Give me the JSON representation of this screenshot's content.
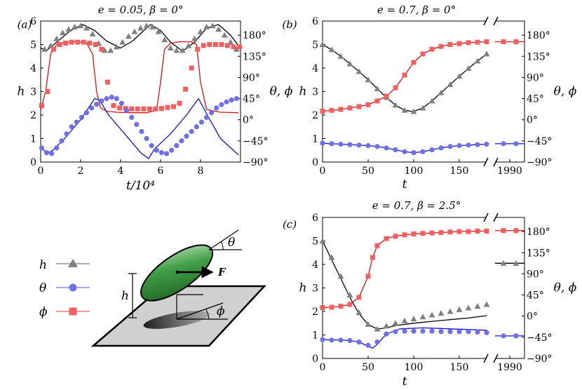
{
  "colors": {
    "h": "#808080",
    "theta": "#6f6fe6",
    "phi": "#f06060",
    "theta_line": "#1010dd",
    "phi_line": "#dd1010",
    "h_line": "#000000",
    "ellipsoid": "#2e7d32",
    "plane": "#d0d0d0"
  },
  "legend": {
    "h": "h",
    "theta": "θ",
    "phi": "ϕ"
  },
  "diagram": {
    "h": "h",
    "theta": "θ",
    "phi": "ϕ",
    "F": "F"
  },
  "chart_data": [
    {
      "panel": "(a)",
      "type": "line",
      "title": "e = 0.05, β = 0°",
      "xlabel": "t/10⁴",
      "ylabel_left": "h",
      "ylabel_right": "θ, ϕ",
      "xlim": [
        0,
        10
      ],
      "ylim_left": [
        0,
        6
      ],
      "ylim_right": [
        -90,
        210
      ],
      "xticks": [
        0,
        2,
        4,
        6,
        8
      ],
      "yticks_left": [
        0,
        1,
        2,
        3,
        4,
        5,
        6
      ],
      "yticks_right": [
        -90,
        -45,
        0,
        45,
        90,
        135,
        180
      ],
      "ytick_labels_right": [
        "−90°",
        "−45°",
        "0°",
        "45°",
        "90°",
        "135°",
        "180°"
      ],
      "series": [
        {
          "name": "h line",
          "axis": "left",
          "kind": "line",
          "color": "#000000",
          "x": [
            0,
            0.3,
            0.8,
            1.5,
            2.1,
            2.7,
            3.3,
            4.0,
            4.6,
            5.1,
            5.5,
            6.0,
            6.5,
            7.1,
            7.7,
            8.3,
            8.9,
            9.5,
            9.9
          ],
          "y": [
            4.85,
            4.75,
            5.1,
            5.6,
            5.85,
            5.6,
            5.15,
            4.85,
            5.15,
            5.55,
            5.85,
            5.6,
            5.1,
            4.72,
            5.1,
            5.7,
            5.85,
            5.4,
            4.95
          ]
        },
        {
          "name": "h",
          "axis": "left",
          "kind": "marker",
          "marker": "triangle",
          "color": "#808080",
          "x": [
            0.2,
            0.5,
            0.8,
            1.1,
            1.4,
            1.7,
            2.0,
            2.3,
            2.6,
            2.9,
            3.2,
            3.5,
            3.8,
            4.1,
            4.4,
            4.7,
            5.0,
            5.3,
            5.6,
            5.9,
            6.2,
            6.5,
            6.8,
            7.1,
            7.4,
            7.7,
            8.0,
            8.3,
            8.6,
            8.9,
            9.2,
            9.5,
            9.8
          ],
          "y": [
            4.8,
            4.95,
            5.25,
            5.5,
            5.65,
            5.75,
            5.8,
            5.7,
            5.45,
            5.05,
            4.75,
            4.75,
            4.9,
            5.1,
            5.35,
            5.55,
            5.7,
            5.8,
            5.75,
            5.55,
            5.2,
            4.85,
            4.75,
            4.75,
            4.95,
            5.25,
            5.55,
            5.75,
            5.8,
            5.65,
            5.4,
            5.1,
            4.8
          ]
        },
        {
          "name": "ϕ line",
          "axis": "right",
          "kind": "line",
          "color": "#dd1010",
          "x": [
            0,
            0.25,
            0.5,
            0.8,
            1.2,
            1.8,
            2.3,
            2.6,
            2.8,
            3.0,
            3.3,
            3.8,
            4.5,
            5.3,
            5.8,
            6.0,
            6.2,
            6.5,
            7.0,
            7.5,
            7.8,
            8.0,
            8.3,
            9.0,
            9.9
          ],
          "y": [
            20,
            60,
            140,
            160,
            165,
            166,
            163,
            140,
            60,
            25,
            18,
            16,
            15,
            15,
            20,
            80,
            150,
            163,
            166,
            166,
            160,
            80,
            22,
            16,
            15
          ]
        },
        {
          "name": "ϕ",
          "axis": "right",
          "kind": "marker",
          "marker": "square",
          "color": "#f06060",
          "x": [
            0.05,
            0.35,
            0.65,
            0.95,
            1.25,
            1.55,
            1.85,
            2.15,
            2.45,
            2.75,
            3.05,
            3.35,
            3.65,
            3.95,
            4.25,
            4.55,
            4.85,
            5.15,
            5.45,
            5.75,
            6.05,
            6.35,
            6.65,
            6.95,
            7.25,
            7.55,
            7.85,
            8.15,
            8.45,
            8.75,
            9.05,
            9.35,
            9.65,
            9.95
          ],
          "y": [
            30,
            60,
            150,
            160,
            163,
            165,
            165,
            165,
            163,
            160,
            150,
            80,
            30,
            25,
            24,
            23,
            23,
            23,
            23,
            23,
            24,
            26,
            28,
            35,
            65,
            110,
            150,
            158,
            160,
            160,
            160,
            158,
            155,
            155
          ]
        },
        {
          "name": "θ line",
          "axis": "right",
          "kind": "line",
          "color": "#1010dd",
          "x": [
            0,
            0.3,
            0.6,
            1.2,
            2.0,
            2.7,
            2.95,
            3.4,
            4.3,
            5.0,
            5.4,
            5.7,
            6.5,
            7.3,
            7.9,
            8.4,
            9.0,
            9.9
          ],
          "y": [
            -55,
            -73,
            -65,
            -40,
            0,
            45,
            42,
            10,
            -35,
            -70,
            -83,
            -62,
            -30,
            10,
            45,
            5,
            -40,
            -75
          ]
        },
        {
          "name": "θ",
          "axis": "right",
          "kind": "marker",
          "marker": "circle",
          "color": "#6f6fe6",
          "x": [
            0.05,
            0.3,
            0.55,
            0.8,
            1.05,
            1.3,
            1.55,
            1.8,
            2.05,
            2.3,
            2.55,
            2.8,
            3.05,
            3.3,
            3.55,
            3.8,
            4.05,
            4.3,
            4.55,
            4.8,
            5.05,
            5.3,
            5.55,
            5.8,
            6.05,
            6.3,
            6.55,
            6.8,
            7.05,
            7.3,
            7.55,
            7.8,
            8.05,
            8.3,
            8.55,
            8.8,
            9.05,
            9.3,
            9.55,
            9.8
          ],
          "y": [
            -60,
            -70,
            -72,
            -60,
            -45,
            -30,
            -15,
            -5,
            5,
            15,
            25,
            33,
            40,
            45,
            48,
            45,
            35,
            20,
            5,
            -10,
            -25,
            -40,
            -55,
            -65,
            -70,
            -72,
            -65,
            -55,
            -45,
            -35,
            -25,
            -15,
            -5,
            5,
            15,
            25,
            32,
            38,
            42,
            45
          ]
        }
      ]
    },
    {
      "panel": "(b)",
      "type": "line",
      "title": "e = 0.7, β = 0°",
      "xlabel": "t",
      "ylabel_left": "h",
      "ylabel_right": "θ, ϕ",
      "xlim": [
        0,
        180
      ],
      "ylim_left": [
        0,
        6
      ],
      "ylim_right": [
        -90,
        210
      ],
      "xticks": [
        0,
        50,
        100,
        150
      ],
      "break_tick": "1990",
      "yticks_left": [
        0,
        1,
        2,
        3,
        4,
        5,
        6
      ],
      "yticks_right": [
        -90,
        -45,
        0,
        45,
        90,
        135,
        180
      ],
      "ytick_labels_right": [
        "−90°",
        "−45°",
        "0°",
        "45°",
        "90°",
        "135°",
        "180°"
      ],
      "series": [
        {
          "name": "h",
          "axis": "left",
          "kind": "linemarker",
          "marker": "triangle",
          "color": "#000000",
          "marker_color": "#808080",
          "x": [
            0,
            10,
            20,
            30,
            40,
            50,
            60,
            70,
            80,
            90,
            100,
            110,
            120,
            130,
            140,
            150,
            160,
            170,
            180
          ],
          "y": [
            5.0,
            4.78,
            4.5,
            4.18,
            3.85,
            3.5,
            3.12,
            2.75,
            2.42,
            2.2,
            2.15,
            2.3,
            2.6,
            2.95,
            3.3,
            3.65,
            3.98,
            4.3,
            4.6
          ]
        },
        {
          "name": "ϕ",
          "axis": "right",
          "kind": "linemarker",
          "marker": "square",
          "color": "#dd1010",
          "marker_color": "#f06060",
          "x": [
            0,
            10,
            20,
            30,
            40,
            50,
            60,
            70,
            80,
            90,
            100,
            110,
            120,
            130,
            140,
            150,
            160,
            170,
            180
          ],
          "y": [
            18,
            20,
            22,
            25,
            28,
            32,
            40,
            50,
            68,
            95,
            122,
            140,
            150,
            156,
            160,
            162,
            164,
            165,
            166
          ]
        },
        {
          "name": "θ",
          "axis": "right",
          "kind": "linemarker",
          "marker": "circle",
          "color": "#1010dd",
          "marker_color": "#6f6fe6",
          "x": [
            0,
            10,
            20,
            30,
            40,
            50,
            60,
            70,
            80,
            90,
            100,
            110,
            120,
            130,
            140,
            150,
            160,
            170,
            180
          ],
          "y": [
            -50,
            -51,
            -52,
            -53,
            -54,
            -55,
            -57,
            -60,
            -64,
            -68,
            -70,
            -68,
            -64,
            -60,
            -57,
            -55,
            -54,
            -53,
            -52
          ]
        }
      ],
      "after_break": {
        "phi": 166,
        "theta": -51
      }
    },
    {
      "panel": "(c)",
      "type": "line",
      "title": "e = 0.7, β = 2.5°",
      "xlabel": "t",
      "ylabel_left": "h",
      "ylabel_right": "θ, ϕ",
      "xlim": [
        0,
        180
      ],
      "ylim_left": [
        0,
        6
      ],
      "ylim_right": [
        -90,
        210
      ],
      "xticks": [
        0,
        50,
        100,
        150
      ],
      "break_tick": "1990",
      "yticks_left": [
        0,
        1,
        2,
        3,
        4,
        5,
        6
      ],
      "yticks_right": [
        -90,
        -45,
        0,
        45,
        90,
        135,
        180
      ],
      "ytick_labels_right": [
        "−90°",
        "−45°",
        "0°",
        "45°",
        "90°",
        "135°",
        "180°"
      ],
      "series": [
        {
          "name": "h line",
          "axis": "left",
          "kind": "line",
          "color": "#000000",
          "x": [
            0,
            10,
            20,
            30,
            40,
            50,
            60,
            70,
            80,
            100,
            120,
            140,
            160,
            180
          ],
          "y": [
            5.0,
            4.2,
            3.4,
            2.6,
            1.9,
            1.45,
            1.25,
            1.3,
            1.4,
            1.5,
            1.58,
            1.65,
            1.72,
            1.82
          ]
        },
        {
          "name": "h",
          "axis": "left",
          "kind": "marker",
          "marker": "triangle",
          "color": "#808080",
          "x": [
            0,
            10,
            20,
            30,
            40,
            50,
            60,
            70,
            80,
            90,
            100,
            110,
            120,
            130,
            140,
            150,
            160,
            170,
            180
          ],
          "y": [
            5.0,
            4.3,
            3.5,
            2.7,
            1.95,
            1.45,
            1.25,
            1.38,
            1.5,
            1.6,
            1.68,
            1.77,
            1.85,
            1.92,
            2.0,
            2.08,
            2.15,
            2.22,
            2.3
          ]
        },
        {
          "name": "ϕ",
          "axis": "right",
          "kind": "linemarker",
          "marker": "square",
          "color": "#dd1010",
          "marker_color": "#f06060",
          "x": [
            0,
            10,
            20,
            30,
            40,
            50,
            55,
            60,
            70,
            80,
            90,
            100,
            110,
            120,
            130,
            140,
            150,
            160,
            170,
            180
          ],
          "y": [
            18,
            19,
            21,
            25,
            40,
            85,
            125,
            150,
            165,
            170,
            173,
            175,
            176,
            177,
            178,
            179,
            180,
            180,
            181,
            181
          ]
        },
        {
          "name": "θ line",
          "axis": "right",
          "kind": "line",
          "color": "#1010dd",
          "x": [
            0,
            20,
            30,
            40,
            50,
            55,
            60,
            70,
            85,
            110,
            140,
            180
          ],
          "y": [
            -50,
            -51,
            -52,
            -55,
            -64,
            -68,
            -60,
            -38,
            -27,
            -25,
            -27,
            -30
          ]
        },
        {
          "name": "θ",
          "axis": "right",
          "kind": "marker",
          "marker": "circle",
          "color": "#6f6fe6",
          "x": [
            0,
            10,
            20,
            30,
            40,
            50,
            60,
            70,
            80,
            90,
            100,
            110,
            120,
            130,
            140,
            150,
            160,
            170,
            180
          ],
          "y": [
            -50,
            -51,
            -51,
            -52,
            -55,
            -62,
            -55,
            -38,
            -33,
            -32,
            -32,
            -32,
            -32,
            -33,
            -33,
            -33,
            -33,
            -34,
            -35
          ]
        }
      ],
      "after_break": {
        "phi": 182,
        "theta": -42,
        "h": 4.05
      }
    }
  ]
}
